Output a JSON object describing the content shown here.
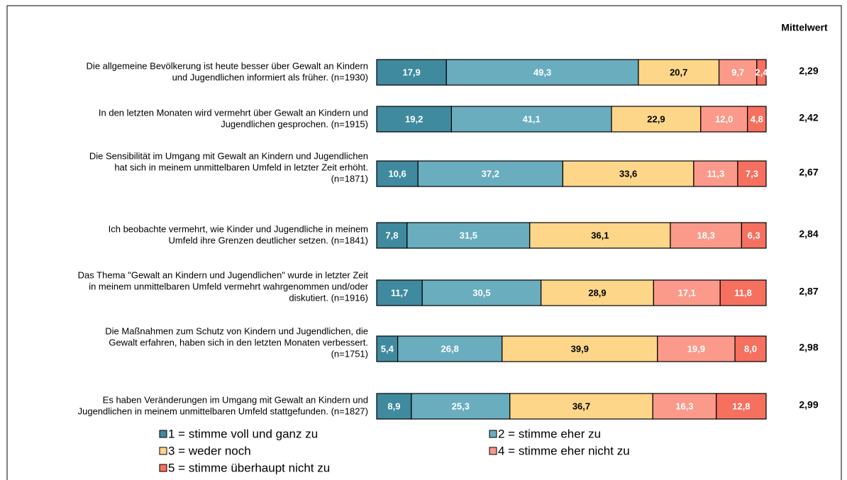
{
  "chart_data": {
    "type": "stacked_barh",
    "mean_title": "Mittelwert",
    "categories": [
      [
        "Die allgemeine Bevölkerung ist heute besser über Gewalt an Kindern",
        "und Jugendlichen informiert als früher. (n=1930)"
      ],
      [
        "In den letzten Monaten wird vermehrt über Gewalt an Kindern und",
        "Jugendlichen gesprochen. (n=1915)"
      ],
      [
        "Die Sensibilität im Umgang mit Gewalt an Kindern und Jugendlichen",
        "hat sich in meinem unmittelbaren Umfeld in letzter Zeit erhöht.",
        "(n=1871)"
      ],
      [
        "Ich beobachte vermehrt, wie Kinder und Jugendliche in meinem",
        "Umfeld ihre Grenzen deutlicher setzen. (n=1841)"
      ],
      [
        "Das Thema \"Gewalt an Kindern und Jugendlichen\" wurde in letzter Zeit",
        "in meinem unmittelbaren Umfeld vermehrt wahrgenommen und/oder",
        "diskutiert. (n=1916)"
      ],
      [
        "Die Maßnahmen zum Schutz von Kindern und Jugendlichen, die",
        "Gewalt erfahren, haben sich in den letzten Monaten verbessert.",
        "(n=1751)"
      ],
      [
        "Es haben Veränderungen im Umgang mit Gewalt an Kindern und",
        "Jugendlichen in meinem unmittelbaren Umfeld stattgefunden. (n=1827)"
      ]
    ],
    "series": [
      {
        "name": "1 = stimme voll und ganz zu",
        "color": "#3f8a9e",
        "values": [
          17.9,
          19.2,
          10.6,
          7.8,
          11.7,
          5.4,
          8.9
        ],
        "value_labels": [
          "17,9",
          "19,2",
          "10,6",
          "7,8",
          "11,7",
          "5,4",
          "8,9"
        ]
      },
      {
        "name": "2 = stimme eher zu",
        "color": "#69adbf",
        "values": [
          49.3,
          41.1,
          37.2,
          31.5,
          30.5,
          26.8,
          25.3
        ],
        "value_labels": [
          "49,3",
          "41,1",
          "37,2",
          "31,5",
          "30,5",
          "26,8",
          "25,3"
        ]
      },
      {
        "name": "3 = weder noch",
        "color": "#fdd68a",
        "values": [
          20.7,
          22.9,
          33.6,
          36.1,
          28.9,
          39.9,
          36.7
        ],
        "value_labels": [
          "20,7",
          "22,9",
          "33,6",
          "36,1",
          "28,9",
          "39,9",
          "36,7"
        ]
      },
      {
        "name": "4 = stimme eher nicht zu",
        "color": "#fb998a",
        "values": [
          9.7,
          12.0,
          11.3,
          18.3,
          17.1,
          19.9,
          16.3
        ],
        "value_labels": [
          "9,7",
          "12,0",
          "11,3",
          "18,3",
          "17,1",
          "19,9",
          "16,3"
        ]
      },
      {
        "name": "5 = stimme überhaupt nicht zu",
        "color": "#f6705f",
        "values": [
          2.4,
          4.8,
          7.3,
          6.3,
          11.8,
          8.0,
          12.8
        ],
        "value_labels": [
          "2,4",
          "4,8",
          "7,3",
          "6,3",
          "11,8",
          "8,0",
          "12,8"
        ]
      }
    ],
    "means": [
      2.29,
      2.42,
      2.67,
      2.84,
      2.87,
      2.98,
      2.99
    ],
    "mean_labels": [
      "2,29",
      "2,42",
      "2,67",
      "2,84",
      "2,87",
      "2,98",
      "2,99"
    ]
  }
}
